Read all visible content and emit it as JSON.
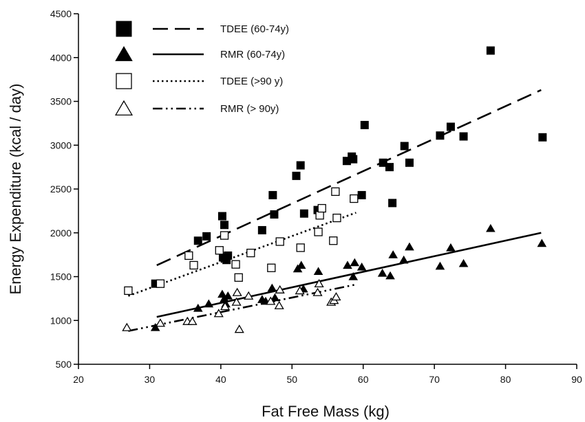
{
  "chart_data": {
    "type": "scatter",
    "title": "",
    "xlabel": "Fat Free Mass (kg)",
    "ylabel": "Energy Expenditure (kcal / day)",
    "xlim": [
      20,
      90
    ],
    "ylim": [
      500,
      4500
    ],
    "xticks": [
      20,
      30,
      40,
      50,
      60,
      70,
      80,
      90
    ],
    "yticks": [
      500,
      1000,
      1500,
      2000,
      2500,
      3000,
      3500,
      4000,
      4500
    ],
    "grid": false,
    "legend_position": "top-left",
    "series": [
      {
        "name": "TDEE (60-74y)",
        "marker": "filled-square",
        "line_style": "dashed",
        "fit": {
          "x": [
            31,
            85
          ],
          "y": [
            1630,
            3630
          ]
        },
        "points": [
          [
            30.8,
            1420
          ],
          [
            36.8,
            1910
          ],
          [
            38.0,
            1960
          ],
          [
            40.2,
            2190
          ],
          [
            40.3,
            1720
          ],
          [
            40.5,
            2090
          ],
          [
            40.8,
            1690
          ],
          [
            41.0,
            1740
          ],
          [
            45.8,
            2030
          ],
          [
            47.3,
            2430
          ],
          [
            47.5,
            2210
          ],
          [
            50.6,
            2650
          ],
          [
            51.2,
            2770
          ],
          [
            51.7,
            2220
          ],
          [
            53.6,
            2260
          ],
          [
            57.7,
            2820
          ],
          [
            58.4,
            2870
          ],
          [
            58.6,
            2840
          ],
          [
            59.8,
            2430
          ],
          [
            60.2,
            3230
          ],
          [
            62.8,
            2800
          ],
          [
            63.7,
            2750
          ],
          [
            64.1,
            2340
          ],
          [
            65.8,
            2990
          ],
          [
            66.5,
            2800
          ],
          [
            70.8,
            3110
          ],
          [
            72.3,
            3210
          ],
          [
            74.1,
            3100
          ],
          [
            77.9,
            4080
          ],
          [
            85.2,
            3090
          ]
        ]
      },
      {
        "name": "RMR (60-74y)",
        "marker": "filled-triangle",
        "line_style": "solid",
        "fit": {
          "x": [
            31,
            85
          ],
          "y": [
            1040,
            2000
          ]
        },
        "points": [
          [
            30.8,
            920
          ],
          [
            36.8,
            1140
          ],
          [
            38.3,
            1190
          ],
          [
            40.2,
            1300
          ],
          [
            40.5,
            1250
          ],
          [
            40.7,
            1190
          ],
          [
            41.0,
            1280
          ],
          [
            45.8,
            1240
          ],
          [
            46.3,
            1220
          ],
          [
            47.2,
            1370
          ],
          [
            47.6,
            1260
          ],
          [
            50.8,
            1590
          ],
          [
            51.3,
            1630
          ],
          [
            51.6,
            1360
          ],
          [
            53.7,
            1560
          ],
          [
            57.8,
            1630
          ],
          [
            58.6,
            1500
          ],
          [
            58.8,
            1660
          ],
          [
            59.8,
            1610
          ],
          [
            62.7,
            1540
          ],
          [
            63.8,
            1510
          ],
          [
            64.2,
            1750
          ],
          [
            65.7,
            1690
          ],
          [
            66.5,
            1840
          ],
          [
            70.8,
            1620
          ],
          [
            72.3,
            1830
          ],
          [
            74.1,
            1650
          ],
          [
            77.9,
            2050
          ],
          [
            85.1,
            1880
          ]
        ]
      },
      {
        "name": "TDEE (>90 y)",
        "marker": "open-square",
        "line_style": "dotted",
        "fit": {
          "x": [
            27,
            59
          ],
          "y": [
            1280,
            2230
          ]
        },
        "points": [
          [
            27.0,
            1340
          ],
          [
            31.5,
            1420
          ],
          [
            35.5,
            1740
          ],
          [
            36.2,
            1630
          ],
          [
            39.8,
            1800
          ],
          [
            40.5,
            1970
          ],
          [
            42.1,
            1640
          ],
          [
            42.5,
            1490
          ],
          [
            44.2,
            1770
          ],
          [
            47.1,
            1600
          ],
          [
            48.3,
            1900
          ],
          [
            51.2,
            1830
          ],
          [
            53.7,
            2010
          ],
          [
            53.9,
            2200
          ],
          [
            54.2,
            2280
          ],
          [
            55.8,
            1910
          ],
          [
            56.1,
            2470
          ],
          [
            56.3,
            2170
          ],
          [
            58.7,
            2390
          ]
        ]
      },
      {
        "name": "RMR (> 90y)",
        "marker": "open-triangle",
        "line_style": "dash-dot-dot",
        "fit": {
          "x": [
            27,
            59
          ],
          "y": [
            880,
            1410
          ]
        },
        "points": [
          [
            26.8,
            920
          ],
          [
            31.5,
            970
          ],
          [
            35.3,
            990
          ],
          [
            36.0,
            990
          ],
          [
            39.7,
            1080
          ],
          [
            40.6,
            1160
          ],
          [
            42.2,
            1210
          ],
          [
            42.3,
            1320
          ],
          [
            42.6,
            900
          ],
          [
            43.9,
            1280
          ],
          [
            47.0,
            1220
          ],
          [
            48.2,
            1170
          ],
          [
            48.3,
            1350
          ],
          [
            51.1,
            1340
          ],
          [
            53.6,
            1320
          ],
          [
            53.8,
            1420
          ],
          [
            55.5,
            1210
          ],
          [
            55.9,
            1230
          ],
          [
            56.2,
            1270
          ]
        ]
      }
    ]
  }
}
